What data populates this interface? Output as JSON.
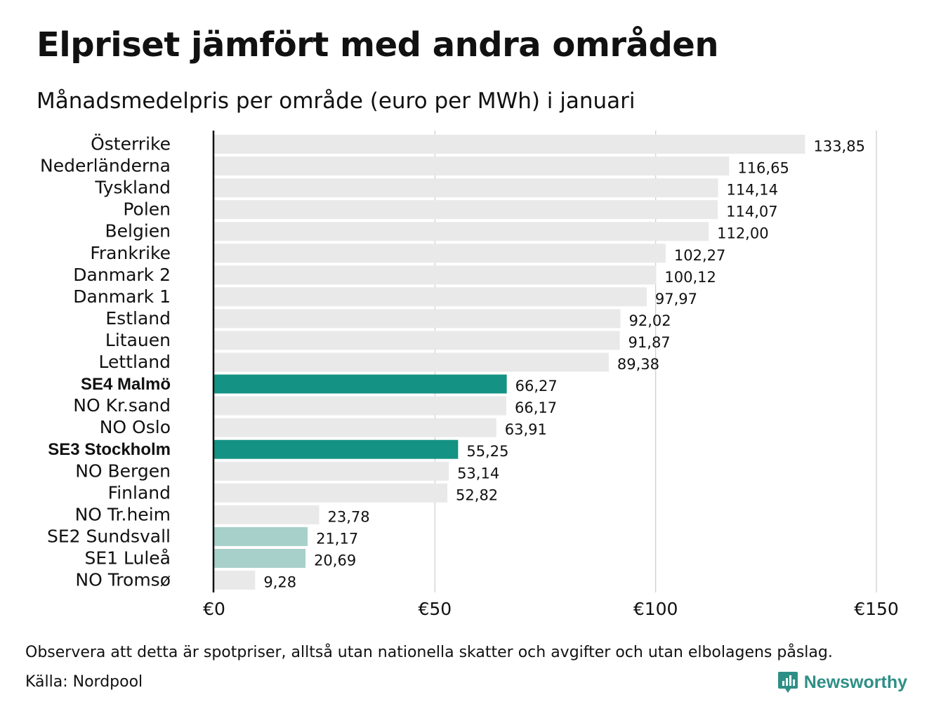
{
  "title": "Elpriset jämfört med andra områden",
  "subtitle": "Månadsmedelpris per område (euro per MWh) i januari",
  "note": "Observera att detta är spotpriser, alltså utan nationella skatter och avgifter och utan elbolagens påslag.",
  "source": "Källa: Nordpool",
  "brand": "Newsworthy",
  "colors": {
    "default_bar": "#e9e9e9",
    "highlight_bar": "#149283",
    "light_highlight_bar": "#a6d0c9",
    "grid": "#cccccc",
    "axis": "#111111",
    "brand": "#2e8f86"
  },
  "chart_data": {
    "type": "bar",
    "orientation": "horizontal",
    "xlim": [
      0,
      150
    ],
    "x_ticks": [
      0,
      50,
      100,
      150
    ],
    "x_tick_labels": [
      "€0",
      "€50",
      "€100",
      "€150"
    ],
    "grid": true,
    "categories": [
      "Österrike",
      "Nederländerna",
      "Tyskland",
      "Polen",
      "Belgien",
      "Frankrike",
      "Danmark  2",
      "Danmark  1",
      "Estland",
      "Litauen",
      "Lettland",
      "SE4 Malmö",
      "NO Kr.sand",
      "NO Oslo",
      "SE3 Stockholm",
      "NO Bergen",
      "Finland",
      "NO Tr.heim",
      "SE2  Sundsvall",
      "SE1  Luleå",
      "NO Tromsø"
    ],
    "values": [
      133.85,
      116.65,
      114.14,
      114.07,
      112.0,
      102.27,
      100.12,
      97.97,
      92.02,
      91.87,
      89.38,
      66.27,
      66.17,
      63.91,
      55.25,
      53.14,
      52.82,
      23.78,
      21.17,
      20.69,
      9.28
    ],
    "value_labels": [
      "133,85",
      "116,65",
      "114,14",
      "114,07",
      "112,00",
      "102,27",
      "100,12",
      "97,97",
      "92,02",
      "91,87",
      "89,38",
      "66,27",
      "66,17",
      "63,91",
      "55,25",
      "53,14",
      "52,82",
      "23,78",
      "21,17",
      "20,69",
      "9,28"
    ],
    "highlight": [
      "default",
      "default",
      "default",
      "default",
      "default",
      "default",
      "default",
      "default",
      "default",
      "default",
      "default",
      "strong",
      "default",
      "default",
      "strong",
      "default",
      "default",
      "default",
      "light",
      "light",
      "default"
    ],
    "bold_labels": [
      "SE4 Malmö",
      "SE3 Stockholm"
    ]
  }
}
